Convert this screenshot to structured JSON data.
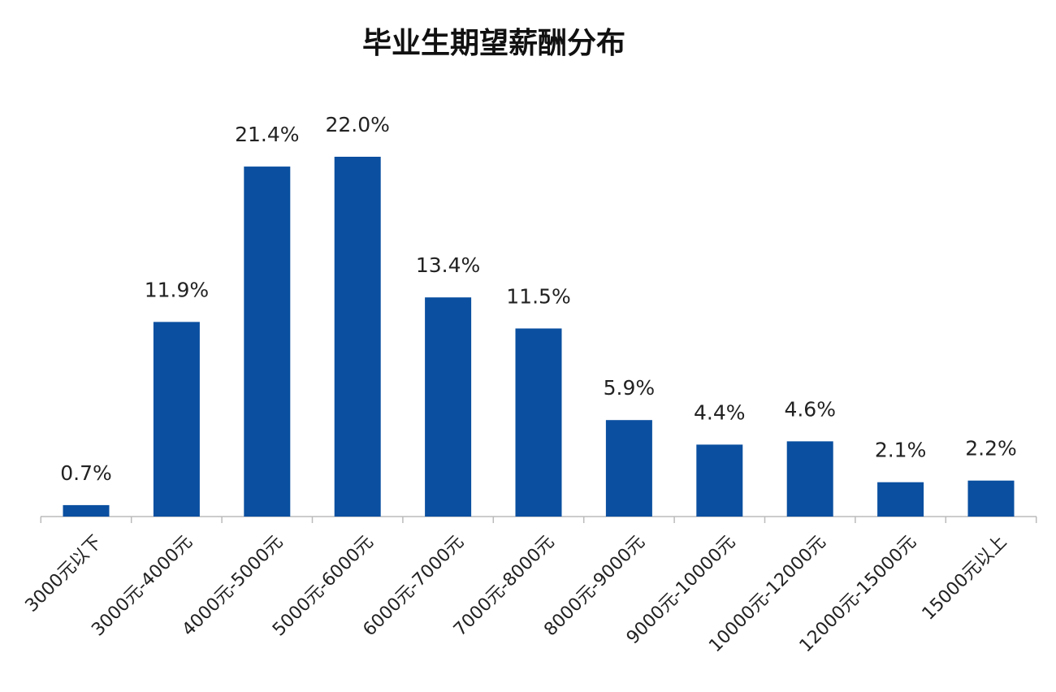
{
  "chart_data": {
    "type": "bar",
    "title": "毕业生期望薪酬分布",
    "categories": [
      "3000元以下",
      "3000元-4000元",
      "4000元-5000元",
      "5000元-6000元",
      "6000元-7000元",
      "7000元-8000元",
      "8000元-9000元",
      "9000元-10000元",
      "10000元-12000元",
      "12000元-15000元",
      "15000元以上"
    ],
    "values": [
      0.7,
      11.9,
      21.4,
      22.0,
      13.4,
      11.5,
      5.9,
      4.4,
      4.6,
      2.1,
      2.2
    ],
    "value_labels": [
      "0.7%",
      "11.9%",
      "21.4%",
      "22.0%",
      "13.4%",
      "11.5%",
      "5.9%",
      "4.4%",
      "4.6%",
      "2.1%",
      "2.2%"
    ],
    "color": "#0a4fa0"
  }
}
